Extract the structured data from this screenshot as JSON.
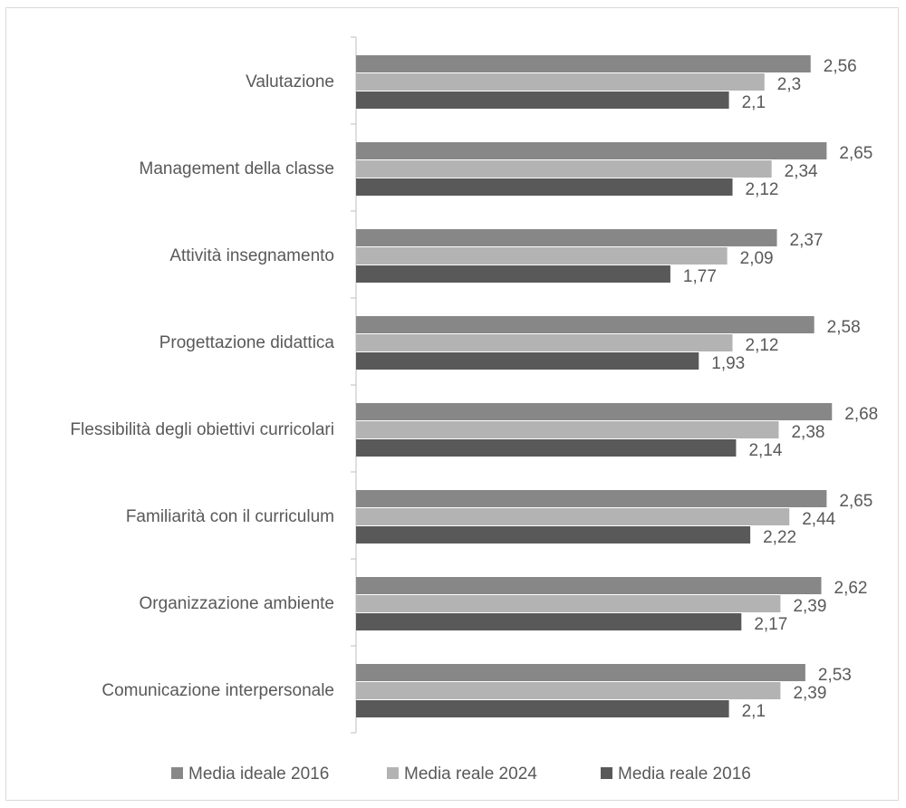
{
  "chart_data": {
    "type": "bar",
    "orientation": "horizontal",
    "title": "",
    "xlabel": "",
    "ylabel": "",
    "categories": [
      "Valutazione",
      "Management della classe",
      "Attività insegnamento",
      "Progettazione didattica",
      "Flessibilità degli obiettivi curricolari",
      "Familiarità con il curriculum",
      "Organizzazione ambiente",
      "Comunicazione interpersonale"
    ],
    "series": [
      {
        "name": "Media ideale 2016",
        "color": "#878787",
        "values": [
          2.56,
          2.65,
          2.37,
          2.58,
          2.68,
          2.65,
          2.62,
          2.53
        ],
        "labels": [
          "2,56",
          "2,65",
          "2,37",
          "2,58",
          "2,68",
          "2,65",
          "2,62",
          "2,53"
        ]
      },
      {
        "name": "Media reale 2024",
        "color": "#b3b3b3",
        "values": [
          2.3,
          2.34,
          2.09,
          2.12,
          2.38,
          2.44,
          2.39,
          2.39
        ],
        "labels": [
          "2,3",
          "2,34",
          "2,09",
          "2,12",
          "2,38",
          "2,44",
          "2,39",
          "2,39"
        ]
      },
      {
        "name": "Media reale 2016",
        "color": "#595959",
        "values": [
          2.1,
          2.12,
          1.77,
          1.93,
          2.14,
          2.22,
          2.17,
          2.1
        ],
        "labels": [
          "2,1",
          "2,12",
          "1,77",
          "1,93",
          "2,14",
          "2,22",
          "2,17",
          "2,1"
        ]
      }
    ],
    "xlim": [
      0,
      3
    ],
    "grid": false,
    "axis_color": "#bfbfbf",
    "legend": "bottom"
  }
}
